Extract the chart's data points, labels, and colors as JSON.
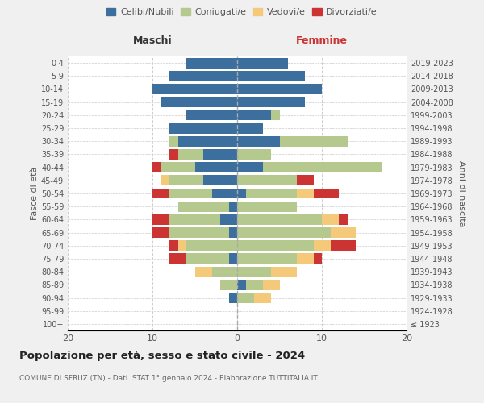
{
  "age_groups": [
    "100+",
    "95-99",
    "90-94",
    "85-89",
    "80-84",
    "75-79",
    "70-74",
    "65-69",
    "60-64",
    "55-59",
    "50-54",
    "45-49",
    "40-44",
    "35-39",
    "30-34",
    "25-29",
    "20-24",
    "15-19",
    "10-14",
    "5-9",
    "0-4"
  ],
  "birth_years": [
    "≤ 1923",
    "1924-1928",
    "1929-1933",
    "1934-1938",
    "1939-1943",
    "1944-1948",
    "1949-1953",
    "1954-1958",
    "1959-1963",
    "1964-1968",
    "1969-1973",
    "1974-1978",
    "1979-1983",
    "1984-1988",
    "1989-1993",
    "1994-1998",
    "1999-2003",
    "2004-2008",
    "2009-2013",
    "2014-2018",
    "2019-2023"
  ],
  "males": {
    "celibi": [
      0,
      0,
      1,
      0,
      0,
      1,
      0,
      1,
      2,
      1,
      3,
      4,
      5,
      4,
      7,
      8,
      6,
      9,
      10,
      8,
      6
    ],
    "coniugati": [
      0,
      0,
      0,
      2,
      3,
      5,
      6,
      7,
      6,
      6,
      5,
      4,
      4,
      3,
      1,
      0,
      0,
      0,
      0,
      0,
      0
    ],
    "vedovi": [
      0,
      0,
      0,
      0,
      2,
      0,
      1,
      0,
      0,
      0,
      0,
      1,
      0,
      0,
      0,
      0,
      0,
      0,
      0,
      0,
      0
    ],
    "divorziati": [
      0,
      0,
      0,
      0,
      0,
      2,
      1,
      2,
      2,
      0,
      2,
      0,
      1,
      1,
      0,
      0,
      0,
      0,
      0,
      0,
      0
    ]
  },
  "females": {
    "nubili": [
      0,
      0,
      0,
      1,
      0,
      0,
      0,
      0,
      0,
      0,
      1,
      0,
      3,
      0,
      5,
      3,
      4,
      8,
      10,
      8,
      6
    ],
    "coniugate": [
      0,
      0,
      2,
      2,
      4,
      7,
      9,
      11,
      10,
      7,
      6,
      7,
      14,
      4,
      8,
      0,
      1,
      0,
      0,
      0,
      0
    ],
    "vedove": [
      0,
      0,
      2,
      2,
      3,
      2,
      2,
      3,
      2,
      0,
      2,
      0,
      0,
      0,
      0,
      0,
      0,
      0,
      0,
      0,
      0
    ],
    "divorziate": [
      0,
      0,
      0,
      0,
      0,
      1,
      3,
      0,
      1,
      0,
      3,
      2,
      0,
      0,
      0,
      0,
      0,
      0,
      0,
      0,
      0
    ]
  },
  "colors": {
    "celibi": "#3d6f9e",
    "coniugati": "#b5c98e",
    "vedovi": "#f5c97a",
    "divorziati": "#cc3333"
  },
  "xlim": 20,
  "title": "Popolazione per età, sesso e stato civile - 2024",
  "subtitle": "COMUNE DI SFRUZ (TN) - Dati ISTAT 1° gennaio 2024 - Elaborazione TUTTITALIA.IT",
  "ylabel": "Fasce di età",
  "ylabel_right": "Anni di nascita",
  "xlabel_left": "Maschi",
  "xlabel_right": "Femmine",
  "bg_color": "#f0f0f0",
  "plot_bg": "#ffffff"
}
